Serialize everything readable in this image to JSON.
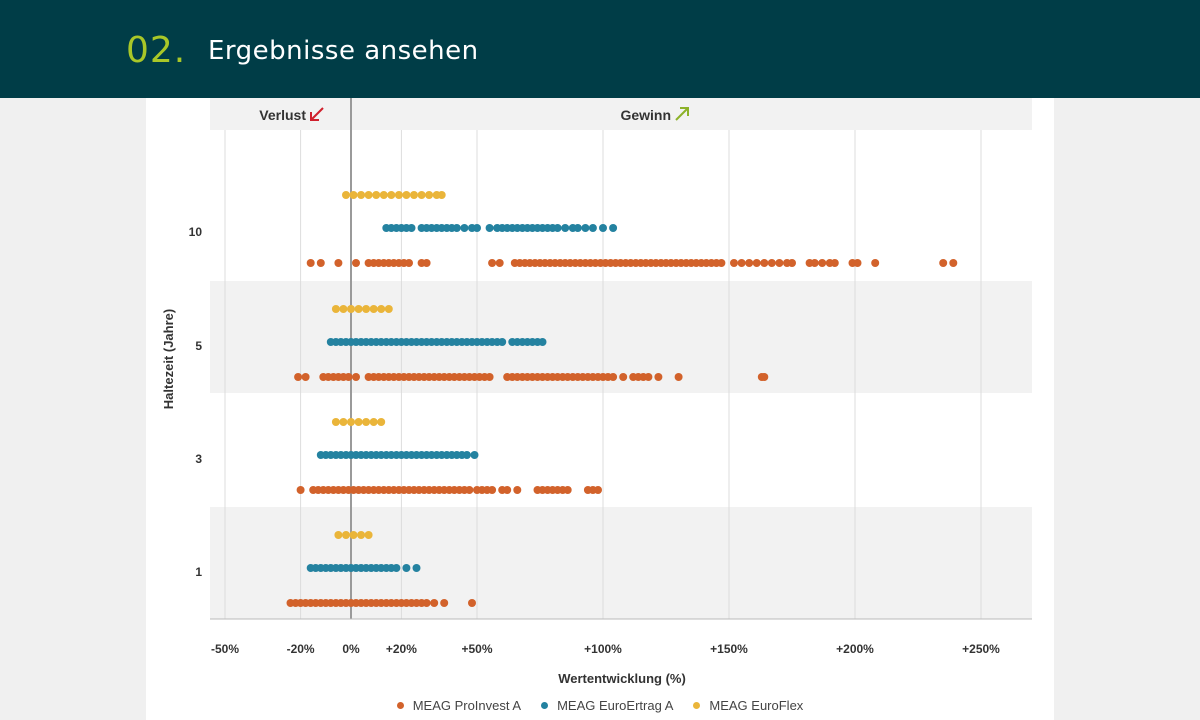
{
  "header": {
    "number": "02.",
    "title": "Ergebnisse ansehen"
  },
  "colors": {
    "header_bg": "#003d47",
    "accent": "#a9c728",
    "proinvest": "#d2622b",
    "euroertrag": "#2482a0",
    "euroflex": "#eab53a",
    "loss_arrow": "#d0202d",
    "gain_arrow": "#8db22a"
  },
  "chart_data": {
    "type": "scatter",
    "top_labels": {
      "loss": "Verlust",
      "gain": "Gewinn"
    },
    "xlabel": "Wertentwicklung (%)",
    "ylabel": "Haltezeit (Jahre)",
    "xlim": [
      -55,
      270
    ],
    "x_ticks": [
      {
        "value": -50,
        "label": "-50%"
      },
      {
        "value": -20,
        "label": "-20%"
      },
      {
        "value": 0,
        "label": "0%"
      },
      {
        "value": 20,
        "label": "+20%"
      },
      {
        "value": 50,
        "label": "+50%"
      },
      {
        "value": 100,
        "label": "+100%"
      },
      {
        "value": 150,
        "label": "+150%"
      },
      {
        "value": 200,
        "label": "+200%"
      },
      {
        "value": 250,
        "label": "+250%"
      }
    ],
    "categories": [
      "10",
      "5",
      "3",
      "1"
    ],
    "legend": [
      "MEAG ProInvest A",
      "MEAG EuroErtrag A",
      "MEAG EuroFlex"
    ],
    "series": [
      {
        "name": "MEAG EuroFlex",
        "groups": [
          {
            "year": "10",
            "x": [
              -2,
              1,
              4,
              7,
              10,
              13,
              16,
              19,
              22,
              25,
              28,
              31,
              34,
              36
            ]
          },
          {
            "year": "5",
            "x": [
              -6,
              -3,
              0,
              3,
              6,
              9,
              12,
              15
            ]
          },
          {
            "year": "3",
            "x": [
              -6,
              -3,
              0,
              3,
              6,
              9,
              12
            ]
          },
          {
            "year": "1",
            "x": [
              -5,
              -2,
              1,
              4,
              7
            ]
          }
        ]
      },
      {
        "name": "MEAG EuroErtrag A",
        "groups": [
          {
            "year": "10",
            "x": [
              14,
              16,
              18,
              20,
              22,
              24,
              28,
              30,
              32,
              34,
              36,
              38,
              40,
              42,
              45,
              48,
              50,
              55,
              58,
              60,
              62,
              64,
              66,
              68,
              70,
              72,
              74,
              76,
              78,
              80,
              82,
              85,
              88,
              90,
              93,
              96,
              100,
              104
            ]
          },
          {
            "year": "5",
            "x": [
              -8,
              -6,
              -4,
              -2,
              0,
              2,
              4,
              6,
              8,
              10,
              12,
              14,
              16,
              18,
              20,
              22,
              24,
              26,
              28,
              30,
              32,
              34,
              36,
              38,
              40,
              42,
              44,
              46,
              48,
              50,
              52,
              54,
              56,
              58,
              60,
              64,
              66,
              68,
              70,
              72,
              74,
              76
            ]
          },
          {
            "year": "3",
            "x": [
              -12,
              -10,
              -8,
              -6,
              -4,
              -2,
              0,
              2,
              4,
              6,
              8,
              10,
              12,
              14,
              16,
              18,
              20,
              22,
              24,
              26,
              28,
              30,
              32,
              34,
              36,
              38,
              40,
              42,
              44,
              46,
              49
            ]
          },
          {
            "year": "1",
            "x": [
              -16,
              -14,
              -12,
              -10,
              -8,
              -6,
              -4,
              -2,
              0,
              2,
              4,
              6,
              8,
              10,
              12,
              14,
              16,
              18,
              22,
              26
            ]
          }
        ]
      },
      {
        "name": "MEAG ProInvest A",
        "groups": [
          {
            "year": "10",
            "x": [
              -16,
              -12,
              -5,
              2,
              7,
              9,
              11,
              13,
              15,
              17,
              19,
              21,
              23,
              28,
              30,
              56,
              59,
              65,
              67,
              69,
              71,
              73,
              75,
              77,
              79,
              81,
              83,
              85,
              87,
              89,
              91,
              93,
              95,
              97,
              99,
              101,
              103,
              105,
              107,
              109,
              111,
              113,
              115,
              117,
              119,
              121,
              123,
              125,
              127,
              129,
              131,
              133,
              135,
              137,
              139,
              141,
              143,
              145,
              147,
              152,
              155,
              158,
              161,
              164,
              167,
              170,
              173,
              175,
              182,
              184,
              187,
              190,
              192,
              199,
              201,
              208,
              235,
              239
            ]
          },
          {
            "year": "5",
            "x": [
              -21,
              -18,
              -11,
              -9,
              -7,
              -5,
              -3,
              -1,
              2,
              7,
              9,
              11,
              13,
              15,
              17,
              19,
              21,
              23,
              25,
              27,
              29,
              31,
              33,
              35,
              37,
              39,
              41,
              43,
              45,
              47,
              49,
              51,
              53,
              55,
              62,
              64,
              66,
              68,
              70,
              72,
              74,
              76,
              78,
              80,
              82,
              84,
              86,
              88,
              90,
              92,
              94,
              96,
              98,
              100,
              102,
              104,
              108,
              112,
              114,
              116,
              118,
              122,
              130,
              163,
              164
            ]
          },
          {
            "year": "3",
            "x": [
              -20,
              -15,
              -13,
              -11,
              -9,
              -7,
              -5,
              -3,
              -1,
              1,
              3,
              5,
              7,
              9,
              11,
              13,
              15,
              17,
              19,
              21,
              23,
              25,
              27,
              29,
              31,
              33,
              35,
              37,
              39,
              41,
              43,
              45,
              47,
              50,
              52,
              54,
              56,
              60,
              62,
              66,
              74,
              76,
              78,
              80,
              82,
              84,
              86,
              94,
              96,
              98
            ]
          },
          {
            "year": "1",
            "x": [
              -24,
              -22,
              -20,
              -18,
              -16,
              -14,
              -12,
              -10,
              -8,
              -6,
              -4,
              -2,
              0,
              2,
              4,
              6,
              8,
              10,
              12,
              14,
              16,
              18,
              20,
              22,
              24,
              26,
              28,
              30,
              33,
              37,
              48
            ]
          }
        ]
      }
    ]
  }
}
